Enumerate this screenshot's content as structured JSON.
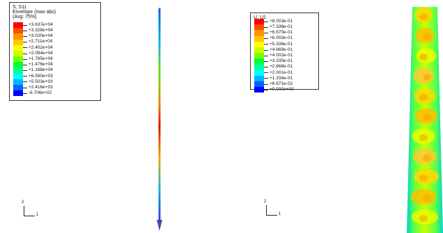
{
  "panels": {
    "left": {
      "legend": {
        "title_lines": [
          "S, S11",
          "Envelope (max abs)",
          "(Avg: 75%)"
        ],
        "values": [
          "+3.637e+04",
          "+3.328e+04",
          "+3.020e+04",
          "+2.711e+04",
          "+2.402e+04",
          "+2.094e+04",
          "+1.785e+04",
          "+1.476e+04",
          "+1.168e+04",
          "+8.590e+03",
          "+5.503e+03",
          "+2.416e+03",
          "-6.706e+02"
        ]
      },
      "triad": {
        "y_label": "2",
        "x_label": "1"
      }
    },
    "right": {
      "legend": {
        "title_lines": [
          "U, U1"
        ],
        "values": [
          "+8.003e-01",
          "+7.336e-01",
          "+6.670e-01",
          "+6.003e-01",
          "+5.336e-01",
          "+4.669e-01",
          "+4.002e-01",
          "+3.335e-01",
          "+2.668e-01",
          "+2.001e-01",
          "+1.334e-01",
          "+6.671e-02",
          "+0.000e+00"
        ]
      },
      "triad": {
        "y_label": "2",
        "x_label": "1"
      }
    }
  },
  "colors": {
    "contour_scale": [
      "#ff0000",
      "#ff4a00",
      "#ff9400",
      "#ffc800",
      "#ffff00",
      "#c8ff00",
      "#78ff00",
      "#00ff3c",
      "#00ffa0",
      "#00ffff",
      "#00b4ff",
      "#0064ff",
      "#0000ff"
    ]
  }
}
